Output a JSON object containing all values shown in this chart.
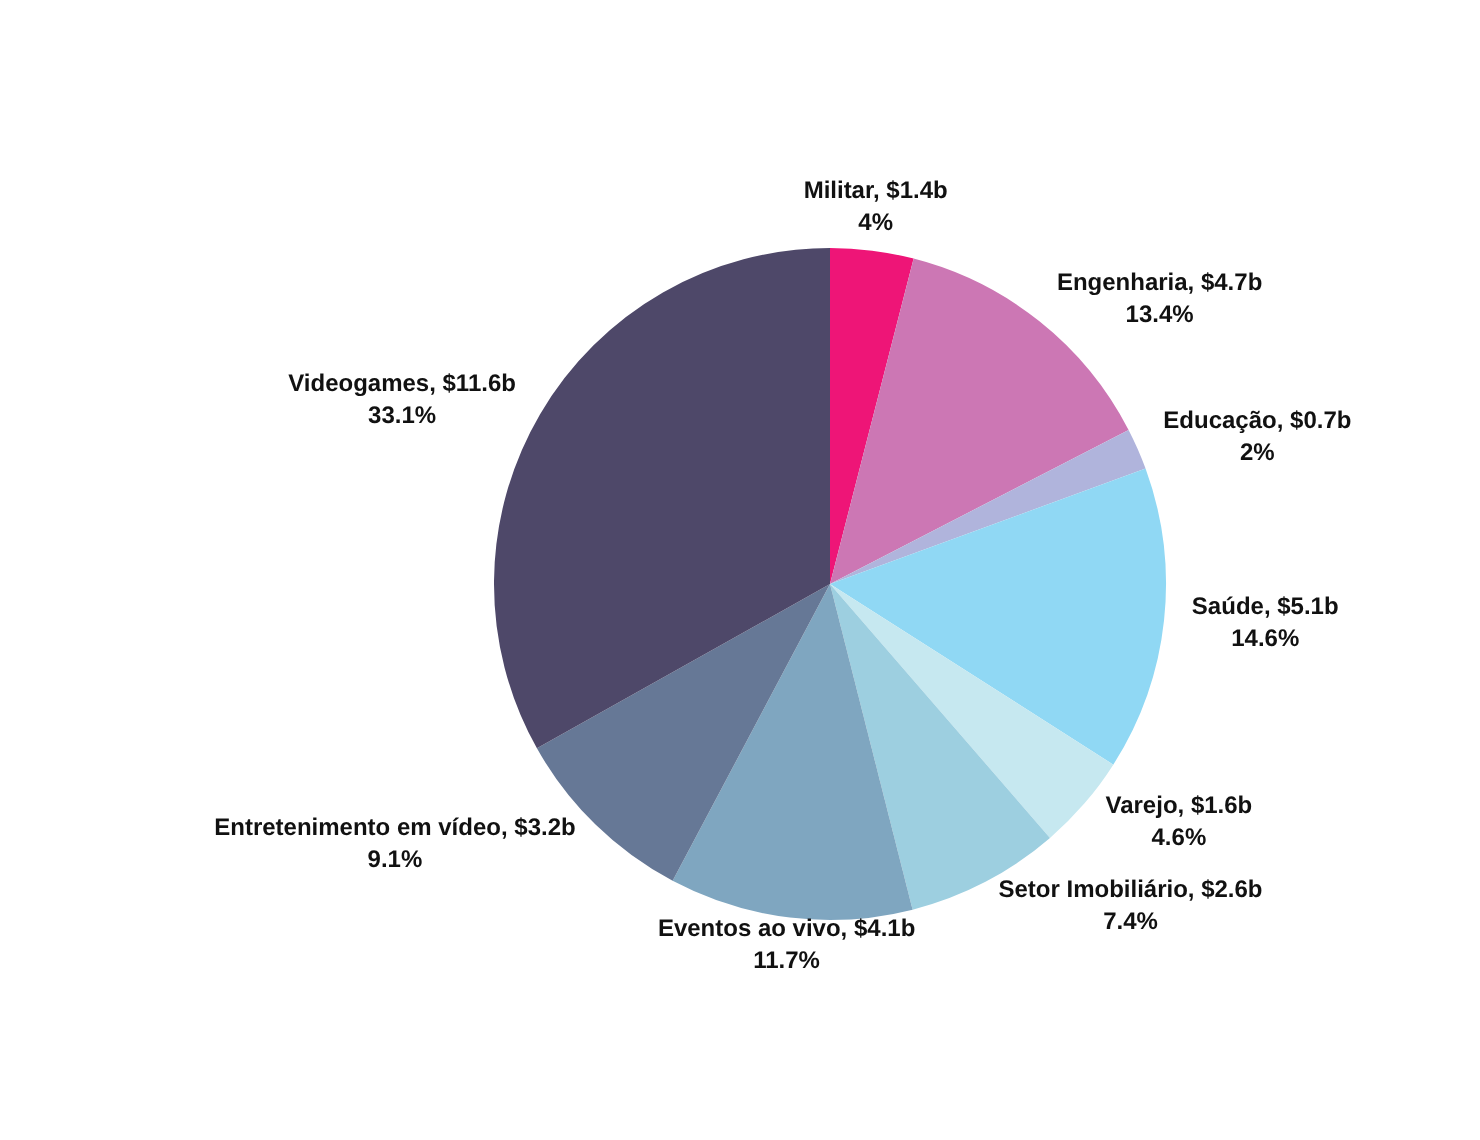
{
  "chart_data": {
    "type": "pie",
    "categories": [
      "Militar, $1.4b",
      "Engenharia, $4.7b",
      "Educação, $0.7b",
      "Saúde, $5.1b",
      "Varejo, $1.6b",
      "Setor Imobiliário, $2.6b",
      "Eventos ao vivo, $4.1b",
      "Entretenimento em vídeo, $3.2b",
      "Videogames, $11.6b"
    ],
    "values": [
      4,
      13.4,
      2,
      14.6,
      4.6,
      7.4,
      11.7,
      9.1,
      33.1
    ],
    "value_labels": [
      "4%",
      "13.4%",
      "2%",
      "14.6%",
      "4.6%",
      "7.4%",
      "11.7%",
      "9.1%",
      "33.1%"
    ],
    "colors": [
      "#ee1577",
      "#cc77b4",
      "#b0b4dc",
      "#90d8f4",
      "#c6e8f0",
      "#9dcfe0",
      "#7fa6c0",
      "#667896",
      "#4e4869"
    ],
    "legend": false
  }
}
